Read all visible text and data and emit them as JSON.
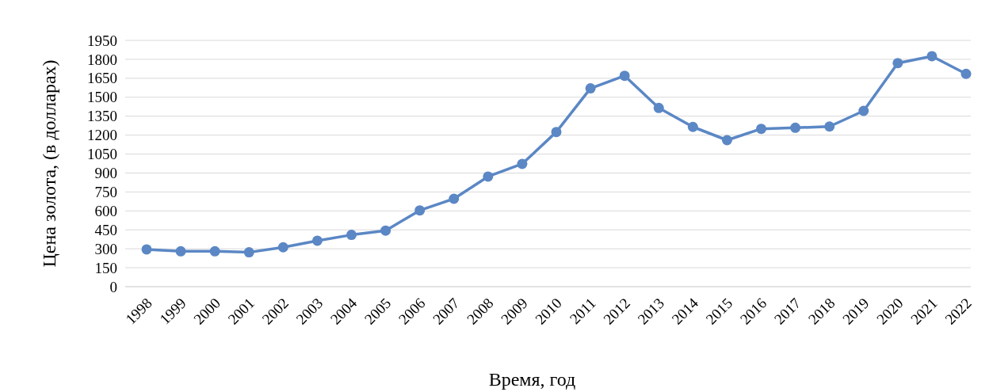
{
  "chart_data": {
    "type": "line",
    "xlabel": "Время, год",
    "ylabel": "Цена золота, (в долларах)",
    "categories": [
      "1998",
      "1999",
      "2000",
      "2001",
      "2002",
      "2003",
      "2004",
      "2005",
      "2006",
      "2007",
      "2008",
      "2009",
      "2010",
      "2011",
      "2012",
      "2013",
      "2014",
      "2015",
      "2016",
      "2017",
      "2018",
      "2019",
      "2020",
      "2021",
      "2022"
    ],
    "series": [
      {
        "color": "#5b87c5",
        "values": [
          295,
          280,
          280,
          272,
          312,
          364,
          410,
          444,
          604,
          696,
          872,
          972,
          1225,
          1570,
          1670,
          1415,
          1265,
          1160,
          1250,
          1258,
          1268,
          1392,
          1770,
          1825,
          1685
        ]
      }
    ],
    "ylim": [
      0,
      1950
    ],
    "yticks": [
      0,
      150,
      300,
      450,
      600,
      750,
      900,
      1050,
      1200,
      1350,
      1500,
      1650,
      1800,
      1950
    ],
    "grid": "y",
    "marker": "circle",
    "line_style": "solid"
  }
}
